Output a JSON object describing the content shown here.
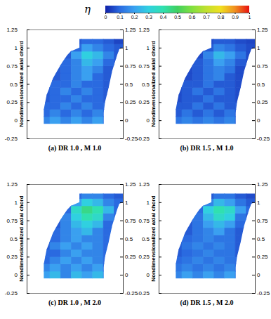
{
  "chart_data": {
    "type": "heatmap",
    "ylabel": "Nondimensionalized axial chord",
    "ylim": [
      -0.25,
      1.25
    ],
    "yticks": [
      -0.25,
      0,
      0.25,
      0.5,
      0.75,
      1,
      1.25
    ],
    "xlim": [
      0,
      1.35
    ],
    "tick_labels": "y",
    "colorbar": {
      "label": "η",
      "range": [
        0,
        1
      ],
      "ticks": [
        0,
        0.1,
        0.2,
        0.3,
        0.4,
        0.5,
        0.6,
        0.7,
        0.8,
        0.9,
        1
      ]
    },
    "x": [
      0.25,
      0.4,
      0.55,
      0.7,
      0.85,
      1.0,
      1.15,
      1.3
    ],
    "y": [
      0.0,
      0.1,
      0.2,
      0.3,
      0.4,
      0.5,
      0.6,
      0.7,
      0.8,
      0.9,
      1.0,
      1.1
    ],
    "panels": [
      {
        "title": "(a) DR 1.0 , M 1.0",
        "z": [
          [
            0.15,
            0.2,
            0.15,
            0.2,
            0.15,
            0.2,
            0.1,
            null
          ],
          [
            0.1,
            0.15,
            0.1,
            0.15,
            0.1,
            0.15,
            0.1,
            null
          ],
          [
            0.1,
            0.1,
            0.15,
            0.1,
            0.15,
            0.1,
            0.1,
            null
          ],
          [
            0.08,
            0.1,
            0.1,
            0.15,
            0.1,
            0.1,
            0.08,
            null
          ],
          [
            0.08,
            0.1,
            0.15,
            0.1,
            0.15,
            0.1,
            0.08,
            null
          ],
          [
            0.08,
            0.1,
            0.1,
            0.15,
            0.1,
            0.1,
            0.08,
            null
          ],
          [
            null,
            0.08,
            0.1,
            0.15,
            0.2,
            0.1,
            0.08,
            null
          ],
          [
            null,
            0.08,
            0.1,
            0.15,
            0.2,
            0.15,
            0.08,
            null
          ],
          [
            null,
            0.08,
            0.1,
            0.15,
            0.25,
            0.2,
            0.1,
            0.08
          ],
          [
            null,
            null,
            0.08,
            0.2,
            0.3,
            0.25,
            0.15,
            0.08
          ],
          [
            null,
            null,
            0.08,
            0.1,
            0.2,
            0.15,
            0.1,
            0.08
          ],
          [
            null,
            null,
            null,
            0.08,
            0.1,
            0.1,
            0.08,
            0.05
          ]
        ]
      },
      {
        "title": "(b) DR 1.5 , M 1.0",
        "z": [
          [
            0.12,
            0.15,
            0.12,
            0.15,
            0.12,
            0.15,
            0.08,
            null
          ],
          [
            0.08,
            0.12,
            0.08,
            0.12,
            0.08,
            0.12,
            0.08,
            null
          ],
          [
            0.08,
            0.08,
            0.12,
            0.08,
            0.12,
            0.08,
            0.08,
            null
          ],
          [
            0.06,
            0.08,
            0.08,
            0.12,
            0.08,
            0.08,
            0.06,
            null
          ],
          [
            0.06,
            0.08,
            0.12,
            0.08,
            0.12,
            0.08,
            0.06,
            null
          ],
          [
            0.06,
            0.08,
            0.08,
            0.12,
            0.08,
            0.08,
            0.06,
            null
          ],
          [
            null,
            0.06,
            0.08,
            0.12,
            0.15,
            0.08,
            0.06,
            null
          ],
          [
            null,
            0.06,
            0.08,
            0.12,
            0.15,
            0.12,
            0.06,
            null
          ],
          [
            null,
            0.06,
            0.08,
            0.12,
            0.2,
            0.15,
            0.08,
            0.06
          ],
          [
            null,
            null,
            0.06,
            0.15,
            0.25,
            0.2,
            0.12,
            0.06
          ],
          [
            null,
            null,
            0.06,
            0.08,
            0.15,
            0.12,
            0.08,
            0.06
          ],
          [
            null,
            null,
            null,
            0.06,
            0.08,
            0.08,
            0.06,
            0.05
          ]
        ]
      },
      {
        "title": "(c) DR 1.0 , M 2.0",
        "z": [
          [
            0.2,
            0.25,
            0.15,
            0.25,
            0.2,
            0.25,
            0.15,
            null
          ],
          [
            0.15,
            0.2,
            0.15,
            0.2,
            0.15,
            0.2,
            0.1,
            null
          ],
          [
            0.1,
            0.15,
            0.2,
            0.15,
            0.2,
            0.15,
            0.1,
            null
          ],
          [
            0.1,
            0.1,
            0.15,
            0.2,
            0.15,
            0.15,
            0.1,
            null
          ],
          [
            0.08,
            0.15,
            0.2,
            0.15,
            0.2,
            0.15,
            0.1,
            null
          ],
          [
            0.08,
            0.1,
            0.15,
            0.2,
            0.15,
            0.15,
            0.1,
            null
          ],
          [
            null,
            0.1,
            0.15,
            0.2,
            0.25,
            0.15,
            0.1,
            null
          ],
          [
            null,
            0.08,
            0.15,
            0.25,
            0.3,
            0.25,
            0.1,
            null
          ],
          [
            null,
            0.08,
            0.15,
            0.3,
            0.4,
            0.35,
            0.15,
            0.1
          ],
          [
            null,
            null,
            0.1,
            0.35,
            0.45,
            0.4,
            0.25,
            0.1
          ],
          [
            null,
            null,
            0.1,
            0.2,
            0.3,
            0.25,
            0.15,
            0.1
          ],
          [
            null,
            null,
            null,
            0.1,
            0.15,
            0.15,
            0.1,
            0.08
          ]
        ]
      },
      {
        "title": "(d) DR 1.5 , M 2.0",
        "z": [
          [
            0.15,
            0.2,
            0.15,
            0.2,
            0.15,
            0.2,
            0.12,
            null
          ],
          [
            0.12,
            0.15,
            0.12,
            0.15,
            0.12,
            0.15,
            0.1,
            null
          ],
          [
            0.1,
            0.12,
            0.15,
            0.12,
            0.15,
            0.12,
            0.1,
            null
          ],
          [
            0.08,
            0.1,
            0.12,
            0.15,
            0.12,
            0.12,
            0.08,
            null
          ],
          [
            0.08,
            0.12,
            0.15,
            0.12,
            0.15,
            0.12,
            0.08,
            null
          ],
          [
            0.08,
            0.1,
            0.12,
            0.15,
            0.12,
            0.12,
            0.08,
            null
          ],
          [
            null,
            0.08,
            0.12,
            0.15,
            0.2,
            0.12,
            0.08,
            null
          ],
          [
            null,
            0.08,
            0.12,
            0.2,
            0.25,
            0.2,
            0.1,
            null
          ],
          [
            null,
            0.08,
            0.12,
            0.25,
            0.35,
            0.3,
            0.12,
            0.08
          ],
          [
            null,
            null,
            0.1,
            0.3,
            0.4,
            0.35,
            0.2,
            0.1
          ],
          [
            null,
            null,
            0.08,
            0.15,
            0.25,
            0.2,
            0.12,
            0.08
          ],
          [
            null,
            null,
            null,
            0.08,
            0.12,
            0.12,
            0.08,
            0.06
          ]
        ]
      }
    ]
  }
}
